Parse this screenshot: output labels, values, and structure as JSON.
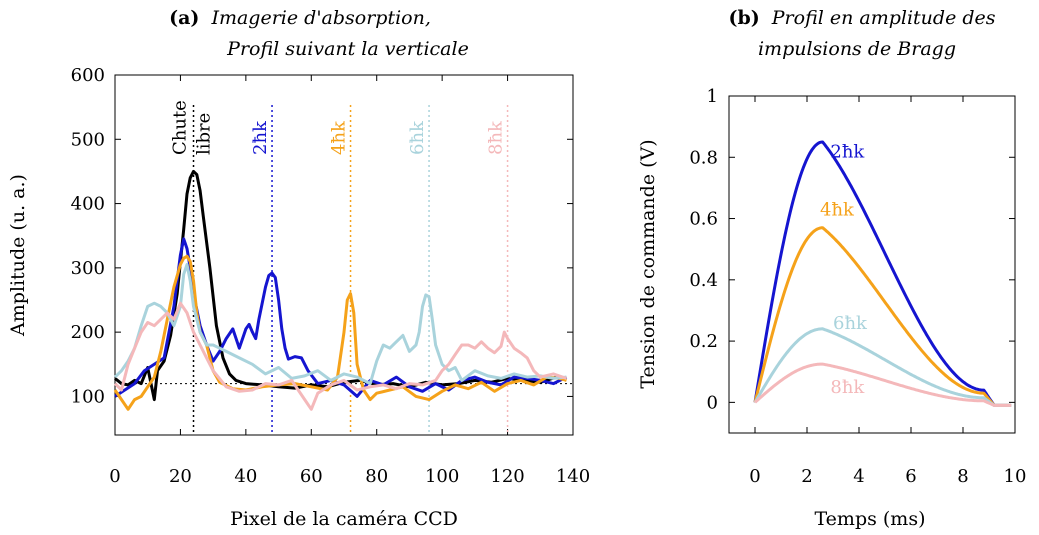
{
  "colors": {
    "black": "#000000",
    "blue": "#1515d0",
    "orange": "#f5a21a",
    "lightblue": "#a9d3dc",
    "pink": "#f4b8ba"
  },
  "chart_data": [
    {
      "type": "line",
      "panel": "(a)",
      "title_line1": "Imagerie d'absorption,",
      "title_line2": "Profil suivant la verticale",
      "xlabel": "Pixel de la caméra CCD",
      "ylabel": "Amplitude (u. a.)",
      "xlim": [
        0,
        140
      ],
      "ylim": [
        40,
        600
      ],
      "xticks": [
        "0",
        "20",
        "40",
        "60",
        "80",
        "100",
        "120",
        "140"
      ],
      "yticks": [
        "100",
        "200",
        "300",
        "400",
        "500",
        "600"
      ],
      "baseline": 120,
      "markers": [
        {
          "x": 24,
          "label_line1": "Chute",
          "label_line2": "libre",
          "color": "#000000"
        },
        {
          "x": 48,
          "label_line1": "2ħk",
          "label_line2": "",
          "color": "#1515d0"
        },
        {
          "x": 72,
          "label_line1": "4ħk",
          "label_line2": "",
          "color": "#f5a21a"
        },
        {
          "x": 96,
          "label_line1": "6ħk",
          "label_line2": "",
          "color": "#a9d3dc"
        },
        {
          "x": 120,
          "label_line1": "8ħk",
          "label_line2": "",
          "color": "#f4b8ba"
        }
      ],
      "series": [
        {
          "color": "#000000",
          "x": [
            0,
            2,
            4,
            6,
            8,
            10,
            12,
            13,
            15,
            17,
            19,
            21,
            22,
            23,
            24,
            25,
            26,
            27,
            29,
            31,
            33,
            35,
            37,
            40,
            45,
            50,
            55,
            60,
            65,
            70,
            75,
            80,
            85,
            90,
            95,
            100,
            105,
            110,
            115,
            120,
            125,
            130,
            135,
            138
          ],
          "y": [
            128,
            120,
            118,
            125,
            120,
            145,
            95,
            140,
            155,
            195,
            260,
            360,
            415,
            440,
            450,
            445,
            420,
            380,
            300,
            210,
            160,
            135,
            125,
            120,
            118,
            115,
            113,
            118,
            115,
            122,
            125,
            118,
            120,
            115,
            122,
            118,
            120,
            125,
            122,
            128,
            125,
            122,
            130,
            128
          ]
        },
        {
          "color": "#1515d0",
          "x": [
            0,
            3,
            6,
            9,
            12,
            15,
            18,
            20,
            21,
            22,
            23,
            24,
            26,
            28,
            30,
            32,
            34,
            36,
            38,
            40,
            41,
            42,
            43,
            44,
            45,
            46,
            47,
            48,
            49,
            50,
            51,
            52,
            53,
            54,
            55,
            57,
            59,
            62,
            66,
            70,
            74,
            78,
            82,
            86,
            90,
            94,
            98,
            102,
            106,
            110,
            114,
            118,
            122,
            126,
            130,
            134,
            138
          ],
          "y": [
            100,
            110,
            120,
            140,
            150,
            160,
            240,
            320,
            345,
            330,
            300,
            260,
            210,
            180,
            155,
            170,
            190,
            205,
            175,
            205,
            212,
            200,
            190,
            220,
            245,
            270,
            288,
            292,
            285,
            250,
            205,
            175,
            158,
            160,
            162,
            160,
            140,
            120,
            125,
            118,
            100,
            125,
            118,
            130,
            115,
            108,
            120,
            110,
            125,
            130,
            122,
            118,
            130,
            128,
            125,
            120,
            130
          ]
        },
        {
          "color": "#f5a21a",
          "x": [
            0,
            2,
            4,
            6,
            8,
            10,
            12,
            14,
            16,
            18,
            20,
            21,
            22,
            23,
            24,
            25,
            26,
            28,
            30,
            32,
            36,
            40,
            45,
            50,
            55,
            60,
            65,
            68,
            70,
            71,
            72,
            73,
            74,
            76,
            78,
            80,
            84,
            88,
            92,
            96,
            100,
            104,
            108,
            112,
            116,
            120,
            124,
            128,
            132,
            136,
            138
          ],
          "y": [
            110,
            95,
            80,
            95,
            100,
            115,
            130,
            170,
            220,
            270,
            305,
            315,
            318,
            310,
            280,
            230,
            200,
            180,
            140,
            122,
            112,
            110,
            115,
            118,
            120,
            115,
            110,
            130,
            200,
            250,
            260,
            230,
            150,
            110,
            95,
            105,
            110,
            115,
            100,
            95,
            108,
            118,
            112,
            122,
            108,
            120,
            125,
            118,
            130,
            128,
            125
          ]
        },
        {
          "color": "#a9d3dc",
          "x": [
            0,
            2,
            4,
            6,
            8,
            10,
            12,
            14,
            16,
            18,
            20,
            21,
            22,
            23,
            24,
            26,
            28,
            30,
            32,
            34,
            38,
            42,
            46,
            50,
            54,
            58,
            62,
            66,
            70,
            74,
            78,
            80,
            82,
            84,
            86,
            88,
            90,
            92,
            93,
            94,
            95,
            96,
            97,
            98,
            100,
            102,
            104,
            106,
            110,
            114,
            118,
            122,
            126,
            130,
            134,
            138
          ],
          "y": [
            130,
            140,
            155,
            175,
            210,
            240,
            245,
            240,
            230,
            210,
            240,
            290,
            305,
            280,
            240,
            200,
            180,
            180,
            175,
            170,
            160,
            150,
            135,
            145,
            128,
            132,
            140,
            125,
            135,
            130,
            120,
            155,
            180,
            175,
            185,
            195,
            170,
            180,
            200,
            240,
            258,
            255,
            220,
            180,
            150,
            140,
            145,
            125,
            140,
            132,
            128,
            135,
            130,
            132,
            128,
            130
          ]
        },
        {
          "color": "#f4b8ba",
          "x": [
            0,
            2,
            4,
            6,
            8,
            10,
            12,
            14,
            16,
            18,
            20,
            22,
            24,
            26,
            28,
            30,
            34,
            38,
            42,
            46,
            50,
            54,
            58,
            60,
            62,
            66,
            70,
            74,
            78,
            82,
            86,
            90,
            94,
            98,
            100,
            102,
            104,
            106,
            108,
            110,
            112,
            114,
            116,
            118,
            119,
            120,
            122,
            124,
            126,
            128,
            130,
            134,
            138
          ],
          "y": [
            120,
            110,
            150,
            175,
            200,
            215,
            210,
            220,
            230,
            220,
            245,
            230,
            200,
            180,
            160,
            140,
            115,
            108,
            110,
            120,
            118,
            125,
            95,
            80,
            105,
            118,
            125,
            110,
            115,
            118,
            112,
            120,
            118,
            125,
            140,
            150,
            165,
            180,
            180,
            175,
            185,
            175,
            168,
            178,
            200,
            190,
            175,
            168,
            160,
            140,
            130,
            135,
            128
          ]
        }
      ]
    },
    {
      "type": "line",
      "panel": "(b)",
      "title_line1": "Profil en amplitude des",
      "title_line2": "impulsions de Bragg",
      "xlabel": "Temps (ms)",
      "ylabel": "Tension de commande (V)",
      "xlim": [
        -1,
        10
      ],
      "ylim": [
        -0.1,
        1.0
      ],
      "xticks": [
        "0",
        "2",
        "4",
        "6",
        "8",
        "10"
      ],
      "yticks": [
        "0",
        "0.2",
        "0.4",
        "0.6",
        "0.8",
        "1"
      ],
      "series": [
        {
          "name": "2ħk",
          "color": "#1515d0",
          "label_x": 2.9,
          "label_y": 0.8,
          "peak": 0.85,
          "end_value": 0.04,
          "end_time": 8.8
        },
        {
          "name": "4ħk",
          "color": "#f5a21a",
          "label_x": 2.5,
          "label_y": 0.61,
          "peak": 0.57,
          "end_value": 0.03,
          "end_time": 8.8
        },
        {
          "name": "6ħk",
          "color": "#a9d3dc",
          "label_x": 3.0,
          "label_y": 0.24,
          "peak": 0.24,
          "end_value": 0.015,
          "end_time": 8.8
        },
        {
          "name": "8ħk",
          "color": "#f4b8ba",
          "label_x": 2.9,
          "label_y": 0.03,
          "peak": 0.125,
          "end_value": 0.005,
          "end_time": 8.8
        }
      ]
    }
  ]
}
